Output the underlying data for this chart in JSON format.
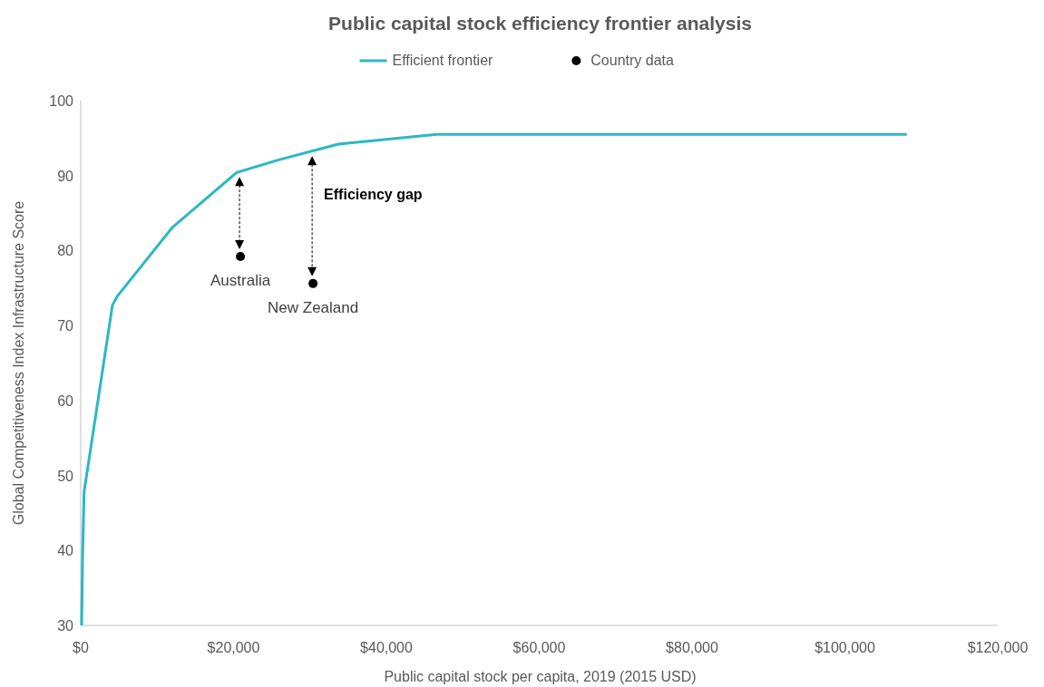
{
  "chart_data": {
    "type": "line",
    "title": "Public capital stock efficiency frontier analysis",
    "xlabel": "Public capital stock per capita, 2019 (2015 USD)",
    "ylabel": "Global Competitiveness Index Infrastructure Score",
    "series": [
      {
        "name": "Efficient frontier",
        "color": "#2bb8c2",
        "x": [
          120,
          240,
          440,
          4150,
          4780,
          12000,
          20400,
          25900,
          33700,
          46600,
          108100
        ],
        "values": [
          30,
          39,
          47.8,
          72.7,
          73.9,
          83.1,
          90.4,
          92.1,
          94.2,
          95.5,
          95.5
        ]
      },
      {
        "name": "Country data",
        "type": "scatter",
        "color": "#000000",
        "marker": "circle",
        "x": [
          20900,
          30400
        ],
        "values": [
          79.2,
          75.6
        ]
      }
    ],
    "annotations": [
      {
        "text": "Australia",
        "x": 20900,
        "y": 79.2
      },
      {
        "text": "New Zealand",
        "x": 30400,
        "y": 75.6
      },
      "Efficiency gap"
    ],
    "xlim": [
      0,
      120000
    ],
    "xticks": [
      {
        "value": 0,
        "label": "$0"
      },
      {
        "value": 20000,
        "label": "$20,000"
      },
      {
        "value": 40000,
        "label": "$40,000"
      },
      {
        "value": 60000,
        "label": "$60,000"
      },
      {
        "value": 80000,
        "label": "$80,000"
      },
      {
        "value": 100000,
        "label": "$100,000"
      },
      {
        "value": 120000,
        "label": "$120,000"
      }
    ],
    "ylim": [
      30,
      100
    ],
    "yticks": [
      30,
      40,
      50,
      60,
      70,
      80,
      90,
      100
    ],
    "grid": false,
    "legend": "top"
  }
}
